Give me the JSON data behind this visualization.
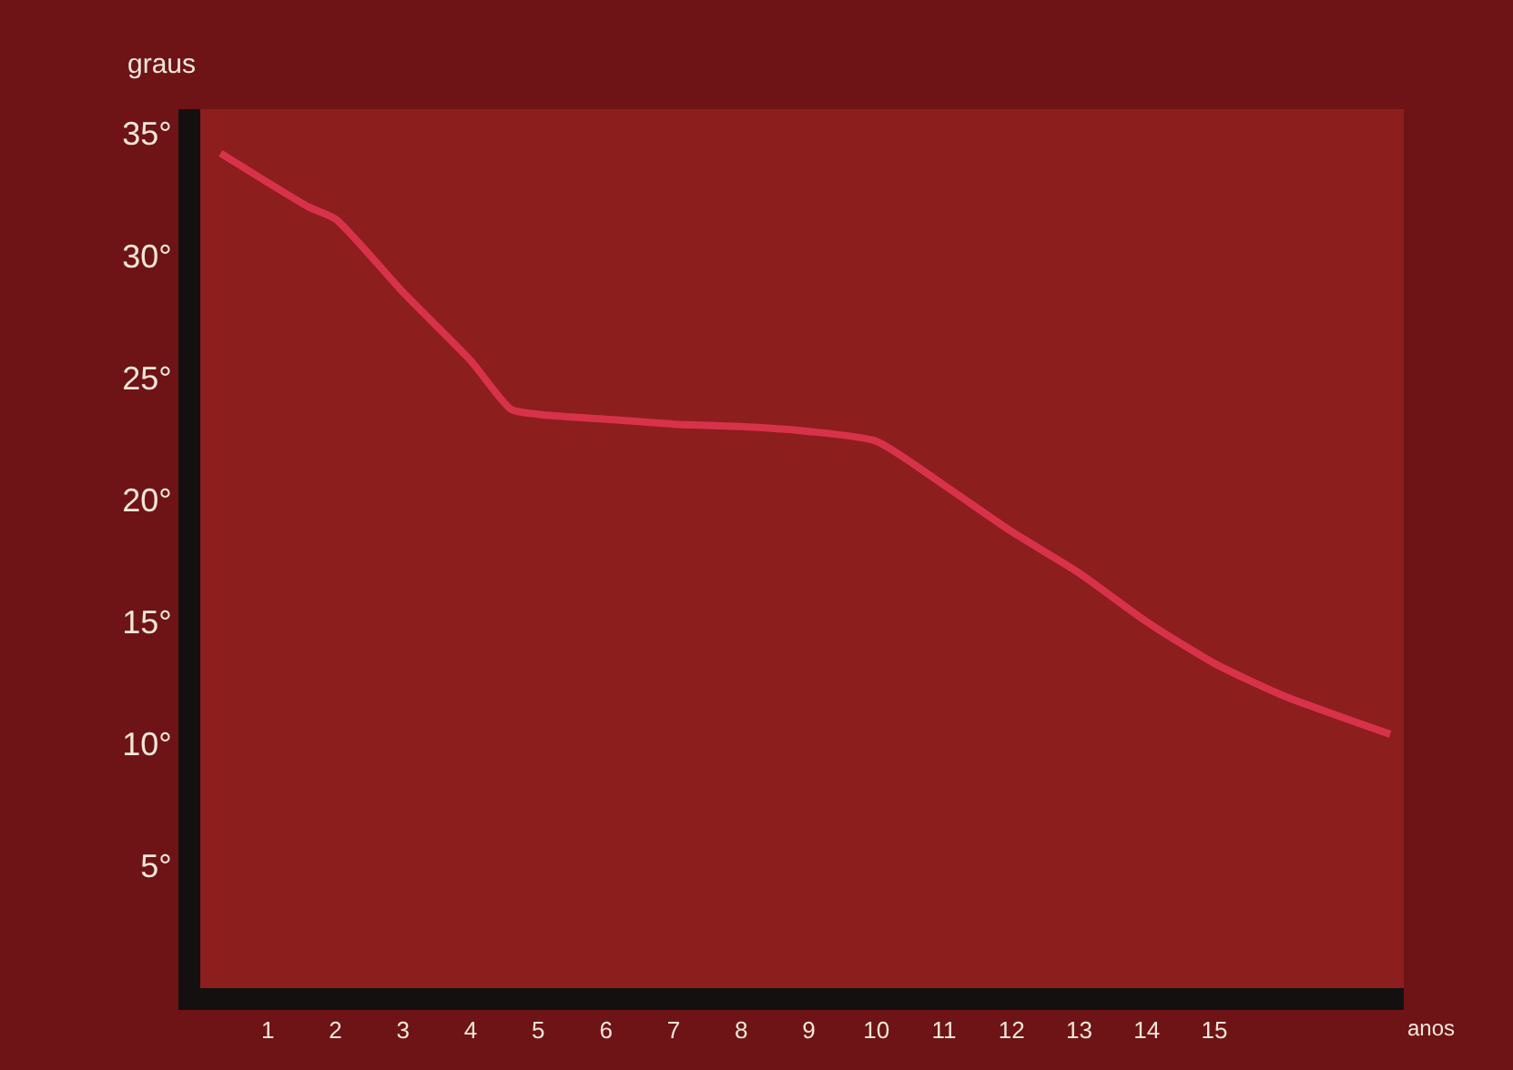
{
  "chart_data": {
    "type": "line",
    "xlabel": "anos",
    "ylabel": "graus",
    "x": [
      0.3,
      1.6,
      2,
      3,
      4,
      4.6,
      5,
      6,
      7,
      8,
      9,
      10,
      11,
      12,
      13,
      14,
      15,
      16,
      17.6
    ],
    "series": [
      {
        "color": "#d8324a",
        "values": [
          34.2,
          32,
          31.5,
          28.5,
          25.7,
          23.7,
          23.5,
          23.3,
          23.1,
          23,
          22.8,
          22.4,
          20.6,
          18.7,
          17,
          15,
          13.3,
          12,
          10.4
        ]
      }
    ],
    "xlim": [
      0,
      17.8
    ],
    "ylim": [
      0,
      36
    ],
    "xticks": [
      1,
      2,
      3,
      4,
      5,
      6,
      7,
      8,
      9,
      10,
      11,
      12,
      13,
      14,
      15
    ],
    "yticks": [
      {
        "value": 5,
        "label": "5°"
      },
      {
        "value": 10,
        "label": "10°"
      },
      {
        "value": 15,
        "label": "15°"
      },
      {
        "value": 20,
        "label": "20°"
      },
      {
        "value": 25,
        "label": "25°"
      },
      {
        "value": 30,
        "label": "30°"
      },
      {
        "value": 35,
        "label": "35°"
      }
    ],
    "grid": false,
    "marker": "none",
    "line_style": "solid"
  }
}
